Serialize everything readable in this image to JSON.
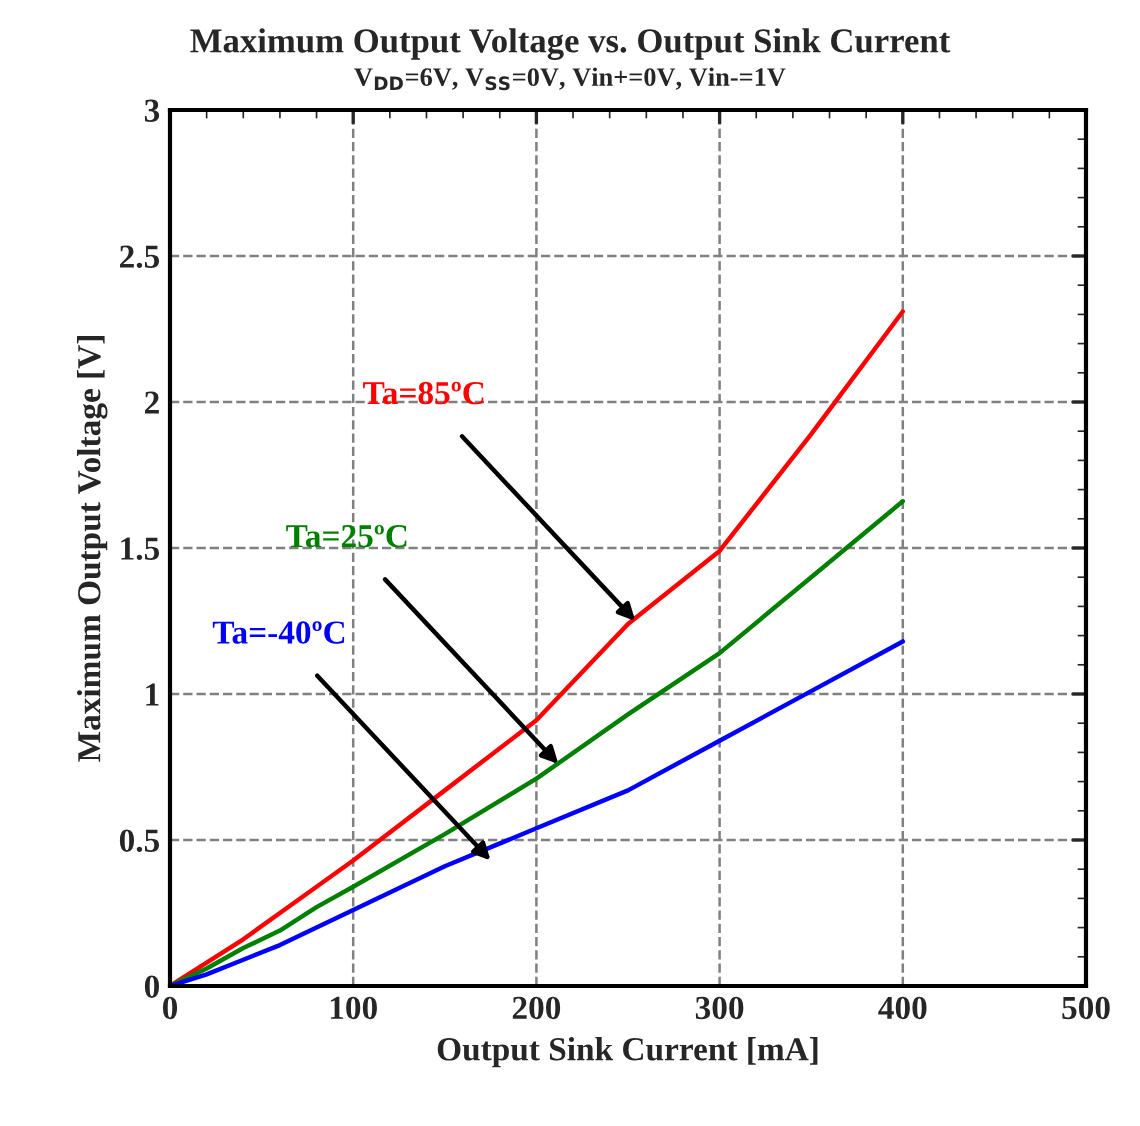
{
  "chart_data": {
    "type": "line",
    "title": "Maximum Output Voltage vs. Output Sink Current",
    "subtitle": "V$_{DD}$=6V, V$_{SS}$=0V, Vin+=0V, Vin-=1V",
    "xlabel": "Output Sink Current [mA]",
    "ylabel": "Maximum Output Voltage [V]",
    "x": [
      0,
      20,
      40,
      60,
      80,
      100,
      150,
      200,
      250,
      300,
      350,
      400
    ],
    "series": [
      {
        "color": "#ff0000",
        "values": [
          0,
          0.08,
          0.16,
          0.25,
          0.34,
          0.43,
          0.67,
          0.91,
          1.24,
          1.49,
          1.89,
          2.31
        ]
      },
      {
        "color": "#008000",
        "values": [
          0,
          0.06,
          0.13,
          0.19,
          0.27,
          0.34,
          0.52,
          0.71,
          0.93,
          1.14,
          1.4,
          1.66
        ]
      },
      {
        "color": "#0000ff",
        "values": [
          0,
          0.04,
          0.09,
          0.14,
          0.2,
          0.26,
          0.41,
          0.54,
          0.67,
          0.84,
          1.01,
          1.18
        ]
      }
    ],
    "annotations": [
      {
        "text": "Ta=85ºC",
        "x": 254,
        "y": 1.25
      },
      {
        "text": "Ta=25ºC",
        "x": 212,
        "y": 0.76
      },
      {
        "text": "Ta=-40ºC",
        "x": 175,
        "y": 0.43
      }
    ],
    "xlim": [
      0,
      500
    ],
    "xticks": [
      0,
      100,
      200,
      300,
      400,
      500
    ],
    "ylim": [
      0,
      3
    ],
    "yticks": [
      0,
      0.5,
      1,
      1.5,
      2,
      2.5,
      3
    ],
    "grid": true
  }
}
